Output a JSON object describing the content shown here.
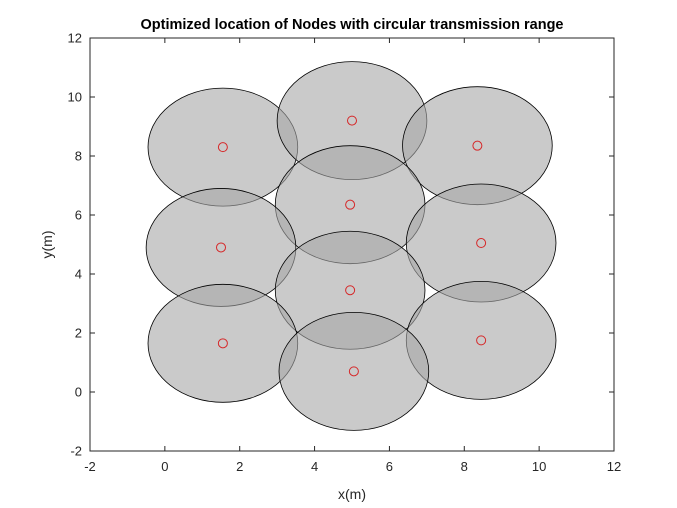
{
  "chart_data": {
    "type": "scatter",
    "title": "Optimized location of Nodes with circular transmission range",
    "xlabel": "x(m)",
    "ylabel": "y(m)",
    "xlim": [
      -2,
      12
    ],
    "ylim": [
      -2,
      12
    ],
    "xticks": [
      -2,
      0,
      2,
      4,
      6,
      8,
      10,
      12
    ],
    "yticks": [
      -2,
      0,
      2,
      4,
      6,
      8,
      10,
      12
    ],
    "transmission_radius": 2,
    "grid": false,
    "colors": {
      "range_fill": "#a6a6a6",
      "range_fill_opacity": 0.6,
      "range_edge": "#000000",
      "node_marker": "#d62728"
    },
    "nodes": [
      {
        "x": 1.55,
        "y": 8.3
      },
      {
        "x": 5.0,
        "y": 9.2
      },
      {
        "x": 8.35,
        "y": 8.35
      },
      {
        "x": 4.95,
        "y": 6.35
      },
      {
        "x": 1.5,
        "y": 4.9
      },
      {
        "x": 8.45,
        "y": 5.05
      },
      {
        "x": 4.95,
        "y": 3.45
      },
      {
        "x": 1.55,
        "y": 1.65
      },
      {
        "x": 8.45,
        "y": 1.75
      },
      {
        "x": 5.05,
        "y": 0.7
      }
    ]
  }
}
